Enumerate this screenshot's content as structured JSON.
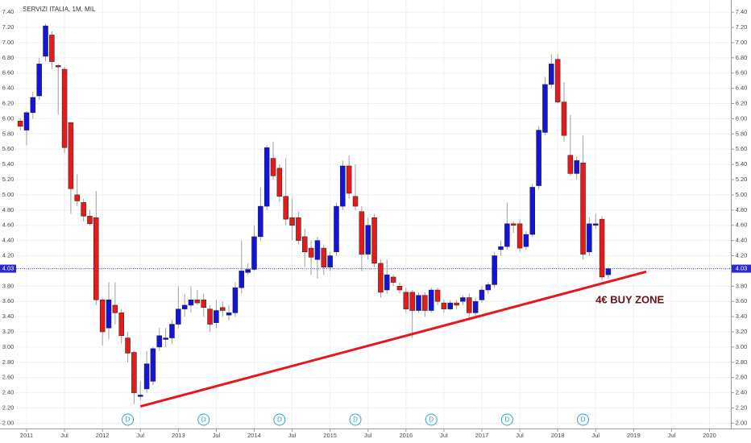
{
  "chart_data": {
    "type": "candlestick",
    "title": "SERVIZI ITALIA, 1M, MIL",
    "x": [
      "2010-12",
      "2011-01",
      "2011-02",
      "2011-03",
      "2011-04",
      "2011-05",
      "2011-06",
      "2011-07",
      "2011-08",
      "2011-09",
      "2011-10",
      "2011-11",
      "2011-12",
      "2012-01",
      "2012-02",
      "2012-03",
      "2012-04",
      "2012-05",
      "2012-06",
      "2012-07",
      "2012-08",
      "2012-09",
      "2012-10",
      "2012-11",
      "2012-12",
      "2013-01",
      "2013-02",
      "2013-03",
      "2013-04",
      "2013-05",
      "2013-06",
      "2013-07",
      "2013-08",
      "2013-09",
      "2013-10",
      "2013-11",
      "2013-12",
      "2014-01",
      "2014-02",
      "2014-03",
      "2014-04",
      "2014-05",
      "2014-06",
      "2014-07",
      "2014-08",
      "2014-09",
      "2014-10",
      "2014-11",
      "2014-12",
      "2015-01",
      "2015-02",
      "2015-03",
      "2015-04",
      "2015-05",
      "2015-06",
      "2015-07",
      "2015-08",
      "2015-09",
      "2015-10",
      "2015-11",
      "2015-12",
      "2016-01",
      "2016-02",
      "2016-03",
      "2016-04",
      "2016-05",
      "2016-06",
      "2016-07",
      "2016-08",
      "2016-09",
      "2016-10",
      "2016-11",
      "2016-12",
      "2017-01",
      "2017-02",
      "2017-03",
      "2017-04",
      "2017-05",
      "2017-06",
      "2017-07",
      "2017-08",
      "2017-09",
      "2017-10",
      "2017-11",
      "2017-12",
      "2018-01",
      "2018-02",
      "2018-03",
      "2018-04",
      "2018-05",
      "2018-06",
      "2018-07",
      "2018-08",
      "2018-09"
    ],
    "open": [
      5.97,
      5.85,
      6.08,
      6.3,
      6.82,
      7.1,
      6.7,
      6.65,
      5.95,
      5.0,
      4.9,
      4.72,
      4.7,
      3.62,
      3.25,
      3.55,
      3.45,
      3.12,
      2.93,
      2.35,
      2.45,
      2.55,
      3.0,
      3.1,
      3.12,
      3.3,
      3.5,
      3.55,
      3.62,
      3.62,
      3.5,
      3.32,
      3.52,
      3.42,
      3.45,
      3.78,
      3.98,
      4.02,
      4.45,
      4.85,
      5.48,
      5.35,
      4.98,
      4.7,
      4.7,
      4.45,
      4.3,
      4.15,
      4.3,
      4.05,
      4.25,
      4.85,
      5.38,
      4.98,
      4.78,
      4.22,
      4.7,
      4.1,
      3.75,
      3.92,
      3.8,
      3.72,
      3.72,
      3.48,
      3.68,
      3.48,
      3.75,
      3.58,
      3.5,
      3.58,
      3.6,
      3.65,
      3.45,
      3.62,
      3.75,
      3.82,
      4.28,
      4.32,
      4.62,
      4.62,
      4.32,
      4.48,
      5.12,
      5.82,
      6.45,
      6.78,
      6.22,
      5.52,
      5.28,
      5.42,
      4.25,
      4.6,
      4.68,
      3.95
    ],
    "high": [
      6.0,
      6.1,
      6.35,
      6.8,
      7.25,
      7.15,
      6.72,
      6.68,
      5.95,
      5.27,
      4.95,
      4.8,
      5.05,
      3.65,
      3.85,
      3.85,
      3.5,
      3.2,
      2.95,
      2.55,
      2.95,
      3.0,
      3.25,
      3.25,
      3.35,
      3.8,
      3.7,
      3.8,
      3.75,
      3.7,
      3.55,
      3.62,
      3.6,
      3.55,
      3.85,
      4.4,
      4.1,
      4.6,
      5.1,
      5.65,
      5.7,
      5.4,
      5.48,
      4.95,
      4.78,
      4.55,
      4.4,
      4.45,
      4.35,
      4.25,
      4.9,
      5.45,
      5.52,
      5.4,
      4.85,
      4.7,
      4.75,
      4.15,
      4.15,
      3.95,
      3.85,
      3.78,
      3.75,
      3.72,
      3.72,
      3.78,
      3.78,
      3.62,
      3.62,
      3.62,
      3.68,
      3.7,
      3.65,
      3.8,
      3.85,
      4.25,
      4.4,
      4.9,
      4.65,
      4.68,
      4.52,
      5.15,
      5.9,
      6.55,
      6.85,
      6.85,
      6.48,
      6.05,
      5.5,
      5.78,
      4.7,
      4.75,
      4.72,
      4.05
    ],
    "low": [
      5.85,
      5.65,
      6.0,
      6.25,
      6.75,
      6.65,
      6.05,
      5.55,
      4.75,
      4.85,
      4.65,
      4.6,
      3.55,
      3.02,
      3.1,
      3.3,
      3.05,
      2.8,
      2.25,
      2.3,
      2.4,
      2.5,
      2.95,
      3.0,
      3.05,
      3.25,
      3.4,
      3.45,
      3.55,
      3.4,
      3.2,
      3.25,
      3.4,
      3.35,
      3.4,
      3.7,
      3.95,
      4.0,
      4.4,
      4.8,
      5.2,
      4.9,
      4.6,
      4.4,
      4.35,
      4.05,
      3.95,
      3.9,
      3.95,
      4.0,
      4.2,
      4.8,
      4.95,
      4.8,
      4.0,
      4.15,
      4.05,
      3.65,
      3.7,
      3.8,
      3.7,
      3.45,
      3.12,
      3.45,
      3.4,
      3.45,
      3.55,
      3.45,
      3.48,
      3.5,
      3.55,
      3.35,
      3.4,
      3.58,
      3.7,
      3.78,
      4.2,
      4.28,
      4.5,
      4.25,
      4.28,
      4.45,
      5.08,
      5.78,
      6.4,
      6.2,
      5.7,
      5.25,
      5.2,
      4.15,
      4.2,
      4.55,
      3.88,
      3.9
    ],
    "close": [
      5.9,
      6.08,
      6.28,
      6.72,
      7.22,
      6.75,
      6.68,
      5.62,
      5.08,
      4.92,
      4.72,
      4.62,
      3.62,
      3.2,
      3.62,
      3.45,
      3.15,
      2.92,
      2.4,
      2.37,
      2.78,
      2.98,
      3.15,
      3.12,
      3.3,
      3.5,
      3.55,
      3.62,
      3.58,
      3.52,
      3.3,
      3.48,
      3.48,
      3.45,
      3.78,
      4.0,
      4.02,
      4.45,
      4.85,
      5.62,
      5.25,
      4.98,
      4.68,
      4.6,
      4.4,
      4.25,
      4.18,
      4.4,
      4.05,
      4.2,
      4.85,
      5.38,
      5.02,
      4.85,
      4.22,
      4.6,
      4.1,
      3.72,
      3.95,
      3.85,
      3.75,
      3.5,
      3.48,
      3.68,
      3.48,
      3.75,
      3.6,
      3.5,
      3.58,
      3.55,
      3.65,
      3.45,
      3.6,
      3.75,
      3.82,
      4.2,
      4.32,
      4.62,
      4.6,
      4.3,
      4.48,
      5.1,
      5.85,
      6.45,
      6.72,
      6.22,
      5.78,
      5.28,
      5.45,
      4.22,
      4.62,
      4.62,
      3.92,
      4.03
    ],
    "up_color": "#1414d8",
    "down_color": "#e31b1b",
    "wick_color": "#a0a0a0",
    "xlim": [
      "2010-09",
      "2020-04"
    ],
    "xticks": [
      {
        "value": "2011-01",
        "label": "2011"
      },
      {
        "value": "2011-07",
        "label": "Jul"
      },
      {
        "value": "2012-01",
        "label": "2012"
      },
      {
        "value": "2012-07",
        "label": "Jul"
      },
      {
        "value": "2013-01",
        "label": "2013"
      },
      {
        "value": "2013-07",
        "label": "Jul"
      },
      {
        "value": "2014-01",
        "label": "2014"
      },
      {
        "value": "2014-07",
        "label": "Jul"
      },
      {
        "value": "2015-01",
        "label": "2015"
      },
      {
        "value": "2015-07",
        "label": "Jul"
      },
      {
        "value": "2016-01",
        "label": "2016"
      },
      {
        "value": "2016-07",
        "label": "Jul"
      },
      {
        "value": "2017-01",
        "label": "2017"
      },
      {
        "value": "2017-07",
        "label": "Jul"
      },
      {
        "value": "2018-01",
        "label": "2018"
      },
      {
        "value": "2018-07",
        "label": "Jul"
      },
      {
        "value": "2019-01",
        "label": "2019"
      },
      {
        "value": "2019-07",
        "label": "Jul"
      },
      {
        "value": "2020-01",
        "label": "2020"
      }
    ],
    "ylim": [
      1.93,
      7.56
    ],
    "yticks": [
      {
        "value": 2.0,
        "label": "2.00"
      },
      {
        "value": 2.2,
        "label": "2.20"
      },
      {
        "value": 2.4,
        "label": "2.40"
      },
      {
        "value": 2.6,
        "label": "2.60"
      },
      {
        "value": 2.8,
        "label": "2.80"
      },
      {
        "value": 3.0,
        "label": "3.00"
      },
      {
        "value": 3.2,
        "label": "3.20"
      },
      {
        "value": 3.4,
        "label": "3.40"
      },
      {
        "value": 3.6,
        "label": "3.60"
      },
      {
        "value": 3.8,
        "label": "3.80"
      },
      {
        "value": 4.0,
        "label": "4.00"
      },
      {
        "value": 4.2,
        "label": "4.20"
      },
      {
        "value": 4.4,
        "label": "4.40"
      },
      {
        "value": 4.6,
        "label": "4.60"
      },
      {
        "value": 4.8,
        "label": "4.80"
      },
      {
        "value": 5.0,
        "label": "5.00"
      },
      {
        "value": 5.2,
        "label": "5.20"
      },
      {
        "value": 5.4,
        "label": "5.40"
      },
      {
        "value": 5.6,
        "label": "5.60"
      },
      {
        "value": 5.8,
        "label": "5.80"
      },
      {
        "value": 6.0,
        "label": "6.00"
      },
      {
        "value": 6.2,
        "label": "6.20"
      },
      {
        "value": 6.4,
        "label": "6.40"
      },
      {
        "value": 6.6,
        "label": "6.60"
      },
      {
        "value": 6.8,
        "label": "6.80"
      },
      {
        "value": 7.0,
        "label": "7.00"
      },
      {
        "value": 7.2,
        "label": "7.20"
      },
      {
        "value": 7.4,
        "label": "7.40"
      }
    ],
    "grid": true,
    "last_price": 4.03,
    "trendline": {
      "color": "#e8161b",
      "start": {
        "x": "2012-07",
        "y": 2.22
      },
      "end": {
        "x": "2019-03",
        "y": 3.99
      }
    },
    "annotation": {
      "text": "4€ BUY ZONE",
      "x": "2018-07",
      "y": 3.61,
      "color": "#6b0f1a"
    },
    "dividends": {
      "label": "D",
      "x": [
        "2012-05",
        "2013-05",
        "2014-05",
        "2015-05",
        "2016-05",
        "2017-05",
        "2018-05"
      ]
    }
  }
}
